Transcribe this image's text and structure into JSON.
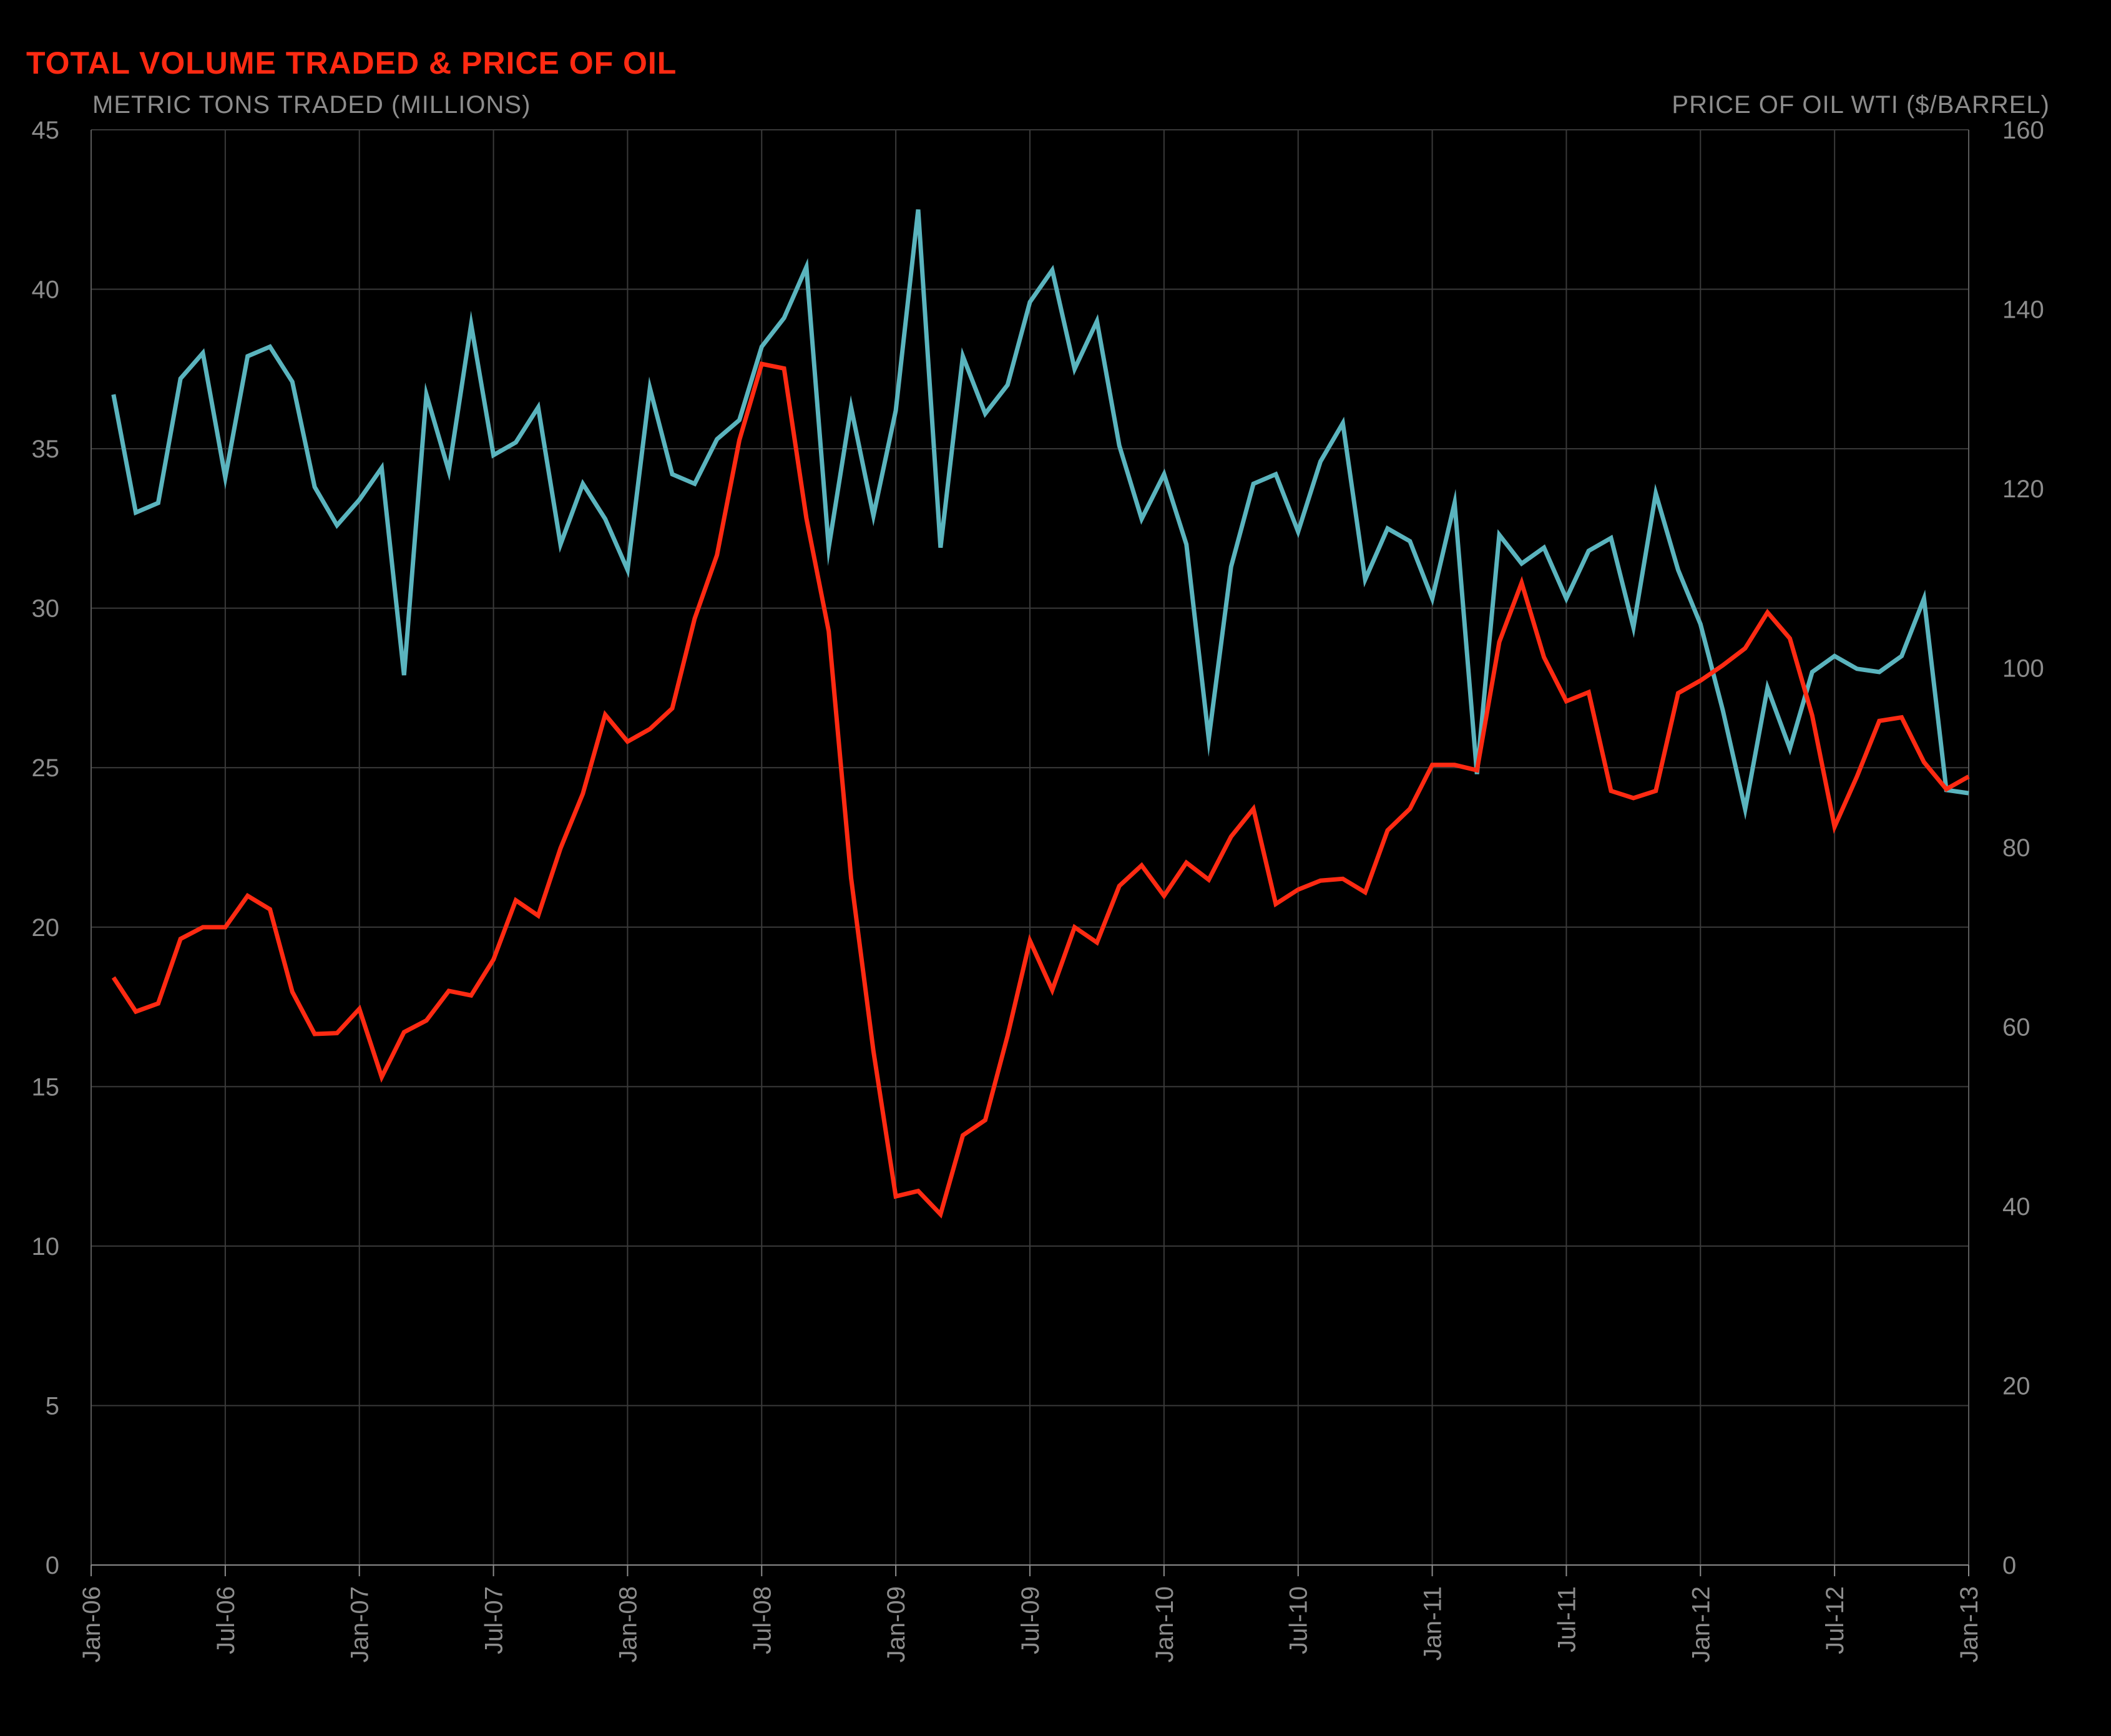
{
  "colors": {
    "background": "#000000",
    "title": "#ff2a12",
    "volume_line": "#5ab4be",
    "price_line": "#ff2a12",
    "grid": "#3a3a3a",
    "axis_text": "#8c8c8c"
  },
  "chart_data": {
    "type": "line",
    "title": "TOTAL VOLUME TRADED & PRICE OF OIL",
    "ylabel_left": "METRIC TONS TRADED (MILLIONS)",
    "ylabel_right": "PRICE OF OIL WTI ($/BARREL)",
    "ylim_left": [
      0,
      45
    ],
    "ylim_right": [
      0,
      160
    ],
    "yticks_left": [
      "0",
      "5",
      "10",
      "15",
      "20",
      "25",
      "30",
      "35",
      "40",
      "45"
    ],
    "yticks_right": [
      "0",
      "20",
      "40",
      "60",
      "80",
      "100",
      "120",
      "140",
      "160"
    ],
    "xlim": [
      "2006-01",
      "2013-01"
    ],
    "xticks": [
      "Jan-06",
      "Jul-06",
      "Jan-07",
      "Jul-07",
      "Jan-08",
      "Jul-08",
      "Jan-09",
      "Jul-09",
      "Jan-10",
      "Jul-10",
      "Jan-11",
      "Jul-11",
      "Jan-12",
      "Jul-12",
      "Jan-13"
    ],
    "grid": true,
    "series": [
      {
        "name": "Metric tons traded",
        "axis": "left",
        "start": "2006-02",
        "values": [
          36.7,
          33.0,
          33.3,
          37.2,
          38.0,
          34.1,
          37.9,
          38.2,
          37.1,
          33.8,
          32.6,
          33.4,
          34.4,
          27.9,
          36.7,
          34.3,
          38.9,
          34.8,
          35.2,
          36.3,
          32.0,
          33.9,
          32.8,
          31.2,
          36.9,
          34.2,
          33.9,
          35.3,
          35.9,
          38.2,
          39.1,
          40.7,
          31.9,
          36.3,
          32.9,
          36.2,
          42.5,
          31.9,
          37.9,
          36.1,
          37.0,
          39.6,
          40.6,
          37.5,
          39.0,
          35.1,
          32.8,
          34.2,
          32.0,
          25.9,
          31.3,
          33.9,
          34.2,
          32.4,
          34.6,
          35.8,
          30.9,
          32.5,
          32.1,
          30.3,
          33.3,
          24.8,
          32.3,
          31.4,
          31.9,
          30.3,
          31.8,
          32.2,
          29.4,
          33.6,
          31.2,
          29.5,
          26.8,
          23.7,
          27.5,
          25.6,
          28.0,
          28.5,
          28.1,
          28.0,
          28.5,
          30.3,
          24.3,
          24.2
        ]
      },
      {
        "name": "Price of oil WTI",
        "axis": "right",
        "start": "2006-02",
        "values": [
          65.5,
          61.7,
          62.6,
          69.8,
          71.1,
          71.1,
          74.6,
          73.1,
          63.9,
          59.2,
          59.3,
          62.0,
          54.4,
          59.4,
          60.7,
          64.0,
          63.5,
          67.5,
          74.1,
          72.4,
          79.9,
          86.0,
          94.8,
          91.8,
          93.2,
          95.5,
          105.5,
          112.6,
          125.4,
          133.9,
          133.4,
          116.7,
          104.1,
          76.6,
          57.3,
          41.1,
          41.7,
          39.1,
          47.9,
          49.6,
          59.0,
          69.6,
          64.1,
          71.1,
          69.4,
          75.7,
          78.0,
          74.6,
          78.3,
          76.4,
          81.2,
          84.3,
          73.7,
          75.3,
          76.3,
          76.5,
          75.0,
          81.9,
          84.3,
          89.2,
          89.2,
          88.6,
          102.9,
          109.5,
          101.2,
          96.3,
          97.3,
          86.3,
          85.5,
          86.3,
          97.2,
          98.6,
          100.3,
          102.2,
          106.2,
          103.3,
          94.7,
          82.3,
          87.9,
          94.1,
          94.5,
          89.5,
          86.5,
          87.9
        ]
      }
    ]
  }
}
